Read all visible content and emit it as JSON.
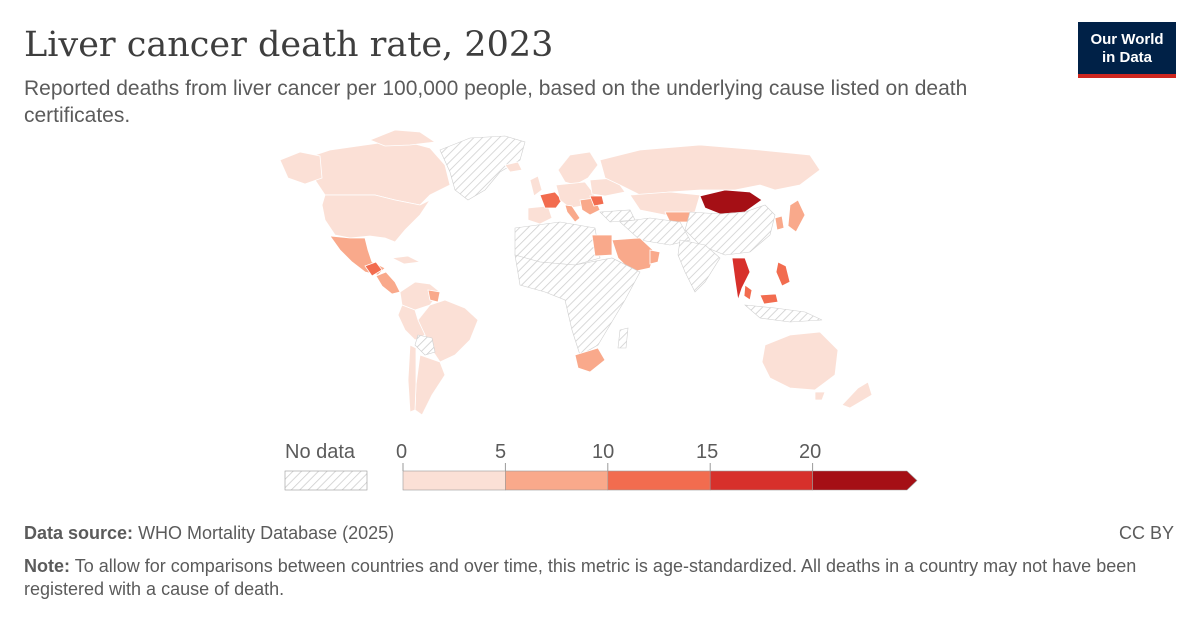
{
  "header": {
    "title": "Liver cancer death rate, 2023",
    "subtitle": "Reported deaths from liver cancer per 100,000 people, based on the underlying cause listed on death certificates."
  },
  "logo": {
    "line1": "Our World",
    "line2": "in Data"
  },
  "legend": {
    "no_data_label": "No data",
    "ticks": [
      "0",
      "5",
      "10",
      "15",
      "20"
    ],
    "bins": [
      {
        "from": 0,
        "to": 5,
        "color": "#fbe0d6"
      },
      {
        "from": 5,
        "to": 10,
        "color": "#f9a98b"
      },
      {
        "from": 10,
        "to": 15,
        "color": "#f26c4f"
      },
      {
        "from": 15,
        "to": 20,
        "color": "#d7302b"
      },
      {
        "from": 20,
        "to": null,
        "color": "#a50f15"
      }
    ]
  },
  "colors": {
    "bin0": "#fbe0d6",
    "bin1": "#f9a98b",
    "bin2": "#f26c4f",
    "bin3": "#d7302b",
    "bin4": "#a50f15",
    "no_data": "#ffffff",
    "hatch": "#cfcfcf",
    "border": "#ffffff"
  },
  "footer": {
    "source_label": "Data source:",
    "source_text": "WHO Mortality Database (2025)",
    "license": "CC BY",
    "note_label": "Note:",
    "note_text": "To allow for comparisons between countries and over time, this metric is age-standardized. All deaths in a country may not have been registered with a cause of death."
  }
}
